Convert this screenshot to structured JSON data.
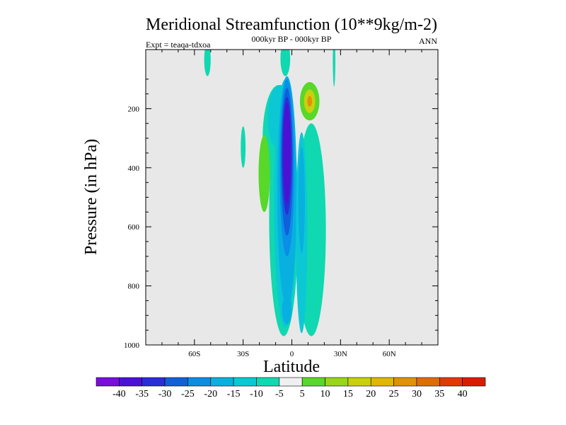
{
  "chart_data": {
    "type": "heatmap",
    "title": "Meridional Streamfunction (10**9kg/m-2)",
    "subtitle": "000kyr BP - 000kyr BP",
    "left_annotation": "Expt = teaqa-tdxoa",
    "right_annotation": "ANN",
    "xlabel": "Latitude",
    "ylabel": "Pressure (in hPa)",
    "xlim": [
      -90,
      90
    ],
    "ylim": [
      1000,
      0
    ],
    "x_ticks": [
      {
        "value": -60,
        "label": "60S"
      },
      {
        "value": -30,
        "label": "30S"
      },
      {
        "value": 0,
        "label": "0"
      },
      {
        "value": 30,
        "label": "30N"
      },
      {
        "value": 60,
        "label": "60N"
      }
    ],
    "y_ticks": [
      {
        "value": 200,
        "label": "200"
      },
      {
        "value": 400,
        "label": "400"
      },
      {
        "value": 600,
        "label": "600"
      },
      {
        "value": 800,
        "label": "800"
      },
      {
        "value": 1000,
        "label": "1000"
      }
    ],
    "colorbar": {
      "levels": [
        "-40",
        "-35",
        "-30",
        "-25",
        "-20",
        "-15",
        "-10",
        "-5",
        "5",
        "10",
        "15",
        "20",
        "25",
        "30",
        "35",
        "40"
      ],
      "colors": [
        "#7b0ed8",
        "#4c12d4",
        "#2a2ed6",
        "#1060dc",
        "#0a8ee6",
        "#08b0e0",
        "#0cc8d4",
        "#10d8b0",
        "#f0f0f0",
        "#58d828",
        "#98d618",
        "#c8d010",
        "#e0b608",
        "#e09206",
        "#e06c04",
        "#e03a02",
        "#d81e00"
      ]
    },
    "background_color": "#e8e8e8",
    "blobs": [
      {
        "name": "sh-cell-outer",
        "lat": -5,
        "p": 570,
        "dlat": 9,
        "dp": 400,
        "level": -5
      },
      {
        "name": "sh-cell-upper-tilt",
        "lat": -8,
        "p": 300,
        "dlat": 10,
        "dp": 180,
        "level": -5
      },
      {
        "name": "sh-cell-top",
        "lat": -4,
        "p": 30,
        "dlat": 3,
        "dp": 60,
        "level": -5
      },
      {
        "name": "sh-cell-l2",
        "lat": -4,
        "p": 520,
        "dlat": 7,
        "dp": 420,
        "level": -10
      },
      {
        "name": "sh-cell-l2-upper",
        "lat": -7,
        "p": 230,
        "dlat": 8,
        "dp": 110,
        "level": -10
      },
      {
        "name": "sh-cell-l3",
        "lat": -3,
        "p": 480,
        "dlat": 6,
        "dp": 390,
        "level": -15
      },
      {
        "name": "sh-cell-l3-lower",
        "lat": -3,
        "p": 880,
        "dlat": 3,
        "dp": 50,
        "level": -15
      },
      {
        "name": "sh-cell-l4",
        "lat": -3,
        "p": 400,
        "dlat": 4.5,
        "dp": 300,
        "level": -20
      },
      {
        "name": "sh-cell-l5",
        "lat": -3,
        "p": 380,
        "dlat": 3.6,
        "dp": 250,
        "level": -25
      },
      {
        "name": "sh-cell-l6",
        "lat": -3,
        "p": 360,
        "dlat": 3,
        "dp": 200,
        "level": -30
      },
      {
        "name": "sh-cell-l7",
        "lat": -3,
        "p": 350,
        "dlat": 2.3,
        "dp": 170,
        "level": -35
      },
      {
        "name": "nh-cell-outer",
        "lat": 12,
        "p": 610,
        "dlat": 9,
        "dp": 360,
        "level": -5
      },
      {
        "name": "nh-cell-l2",
        "lat": 6,
        "p": 620,
        "dlat": 3.5,
        "dp": 340,
        "level": -10
      },
      {
        "name": "nh-cell-l3",
        "lat": 6,
        "p": 510,
        "dlat": 2,
        "dp": 180,
        "level": -15
      },
      {
        "name": "sh-hadley-positive",
        "lat": -17,
        "p": 420,
        "dlat": 3.5,
        "dp": 130,
        "level": 5
      },
      {
        "name": "upper-positive",
        "lat": 11,
        "p": 175,
        "dlat": 6,
        "dp": 65,
        "level": 5
      },
      {
        "name": "upper-positive-l2",
        "lat": 11,
        "p": 175,
        "dlat": 3.5,
        "dp": 40,
        "level": 15
      },
      {
        "name": "upper-positive-core",
        "lat": 11,
        "p": 175,
        "dlat": 1.5,
        "dp": 18,
        "level": 25
      },
      {
        "name": "sh-small-blob",
        "lat": -30,
        "p": 330,
        "dlat": 1.5,
        "dp": 70,
        "level": -5
      },
      {
        "name": "sh-top-blob",
        "lat": -52,
        "p": 35,
        "dlat": 2,
        "dp": 55,
        "level": -5
      },
      {
        "name": "nh-top-blob",
        "lat": 26,
        "p": 35,
        "dlat": 0.8,
        "dp": 90,
        "level": -5
      }
    ]
  }
}
